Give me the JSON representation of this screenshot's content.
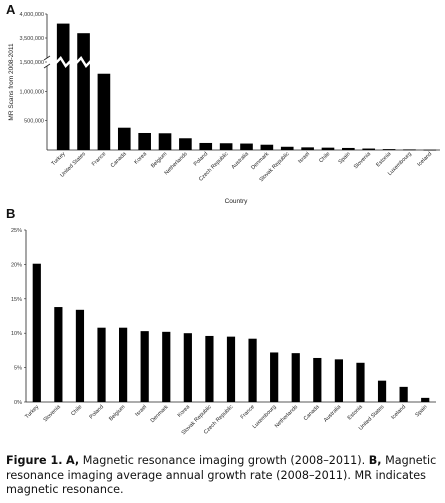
{
  "panels": {
    "a": "A",
    "b": "B"
  },
  "chart_data": [
    {
      "type": "bar",
      "categories": [
        "Turkey",
        "United States",
        "France",
        "Canada",
        "Korea",
        "Belgium",
        "Netherlands",
        "Poland",
        "Czech Republic",
        "Australia",
        "Denmark",
        "Slovak Republic",
        "Israel",
        "Chile",
        "Spain",
        "Slovenia",
        "Estonia",
        "Luxembourg",
        "Iceland"
      ],
      "values": [
        3800000,
        3600000,
        1300000,
        380000,
        290000,
        285000,
        200000,
        120000,
        115000,
        110000,
        90000,
        55000,
        45000,
        40000,
        35000,
        25000,
        15000,
        10000,
        5000
      ],
      "ylabel": "MR Scans from 2008-2011",
      "xlabel": "Country",
      "yticks": [
        "500,000",
        "1,000,000",
        "1,500,000",
        "3,500,000",
        "4,000,000"
      ],
      "axis_break": true,
      "grid": false
    },
    {
      "type": "bar",
      "categories": [
        "Turkey",
        "Slovenia",
        "Chile",
        "Poland",
        "Belgium",
        "Israel",
        "Denmark",
        "Korea",
        "Slovak Republic",
        "Czech Republic",
        "France",
        "Luxembourg",
        "Netherlands",
        "Canada",
        "Australia",
        "Estonia",
        "United States",
        "Iceland",
        "Spain"
      ],
      "values": [
        20.1,
        13.8,
        13.4,
        10.8,
        10.8,
        10.3,
        10.2,
        10.0,
        9.6,
        9.5,
        9.2,
        7.2,
        7.1,
        6.4,
        6.2,
        5.7,
        3.1,
        2.2,
        0.6
      ],
      "ylim": [
        0,
        25
      ],
      "yticks": [
        "0%",
        "5%",
        "10%",
        "15%",
        "20%",
        "25%"
      ],
      "grid": false
    }
  ],
  "caption": {
    "fig": "Figure 1.",
    "a": "A,",
    "a_text": " Magnetic resonance imaging growth (2008–2011). ",
    "b": "B,",
    "b_text": " Magnetic resonance imaging average annual growth rate (2008–2011). MR indicates magnetic resonance."
  }
}
